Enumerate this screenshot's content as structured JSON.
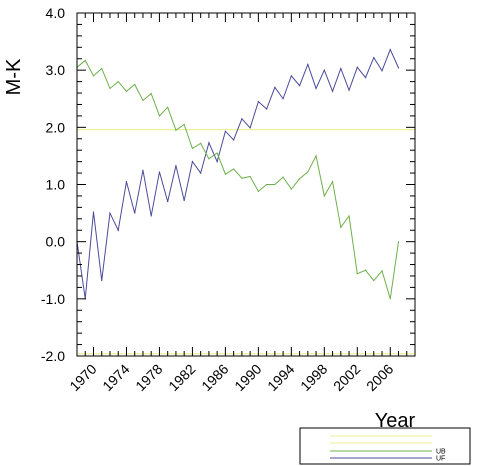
{
  "chart_data": {
    "type": "line",
    "title": "",
    "xlabel": "Year",
    "ylabel": "M-K",
    "xlim": [
      1968,
      2009
    ],
    "ylim": [
      -2.0,
      4.0
    ],
    "x_tick_labels": [
      "1970",
      "1974",
      "1978",
      "1982",
      "1986",
      "1990",
      "1994",
      "1998",
      "2002",
      "2006"
    ],
    "x_tick_values": [
      1970,
      1974,
      1978,
      1982,
      1986,
      1990,
      1994,
      1998,
      2002,
      2006
    ],
    "y_tick_labels": [
      "-2.0",
      "-1.0",
      "0.0",
      "1.0",
      "2.0",
      "3.0",
      "4.0"
    ],
    "y_tick_values": [
      -2.0,
      -1.0,
      0.0,
      1.0,
      2.0,
      3.0,
      4.0
    ],
    "x": [
      1968,
      1969,
      1970,
      1971,
      1972,
      1973,
      1974,
      1975,
      1976,
      1977,
      1978,
      1979,
      1980,
      1981,
      1982,
      1983,
      1984,
      1985,
      1986,
      1987,
      1988,
      1989,
      1990,
      1991,
      1992,
      1993,
      1994,
      1995,
      1996,
      1997,
      1998,
      1999,
      2000,
      2001,
      2002,
      2003,
      2004,
      2005,
      2006,
      2007,
      2008
    ],
    "series": [
      {
        "name": "UF",
        "color": "#4b4b9a",
        "values": [
          0.0,
          -1.0,
          0.52,
          -0.68,
          0.5,
          0.2,
          1.05,
          0.5,
          1.25,
          0.45,
          1.22,
          0.7,
          1.33,
          0.72,
          1.4,
          1.2,
          1.73,
          1.4,
          1.93,
          1.78,
          2.15,
          1.99,
          2.45,
          2.32,
          2.7,
          2.5,
          2.9,
          2.73,
          3.1,
          2.68,
          3.0,
          2.63,
          3.03,
          2.65,
          3.05,
          2.87,
          3.22,
          2.99,
          3.36,
          3.04,
          null
        ]
      },
      {
        "name": "UB",
        "color": "#6fb04b",
        "values": [
          3.05,
          3.17,
          2.9,
          3.03,
          2.68,
          2.8,
          2.63,
          2.75,
          2.47,
          2.59,
          2.2,
          2.35,
          1.95,
          2.05,
          1.63,
          1.72,
          1.45,
          1.55,
          1.18,
          1.27,
          1.11,
          1.14,
          0.88,
          1.0,
          1.0,
          1.13,
          0.92,
          1.1,
          1.22,
          1.5,
          0.8,
          1.05,
          0.25,
          0.45,
          -0.56,
          -0.5,
          -0.68,
          -0.51,
          -1.0,
          0.0,
          null
        ]
      }
    ],
    "reference_lines": [
      {
        "y": 1.96,
        "color": "#efef9a"
      },
      {
        "y": -1.96,
        "color": "#efef9a"
      }
    ],
    "legend": {
      "placement": "bottom-right",
      "entries": [
        {
          "label": "",
          "color": "#efef9a"
        },
        {
          "label": "",
          "color": "#efef9a"
        },
        {
          "label": "UB",
          "color": "#6fb04b"
        },
        {
          "label": "UF",
          "color": "#4b4b9a"
        }
      ]
    },
    "grid": false
  }
}
